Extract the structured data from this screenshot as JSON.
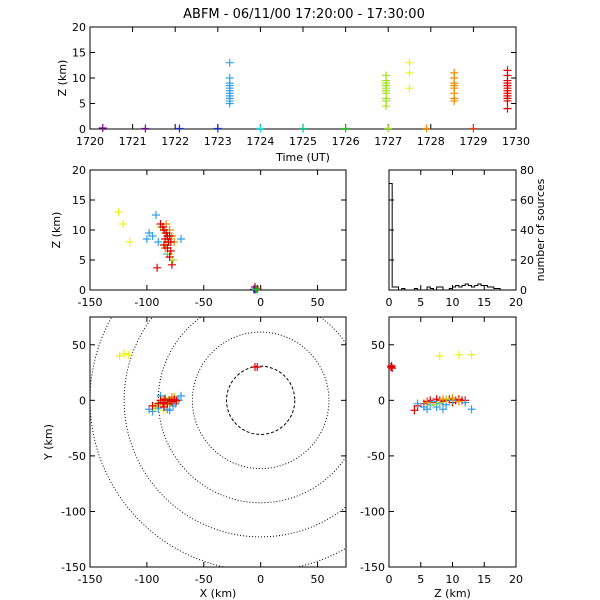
{
  "title": "ABFM - 06/11/00 17:20:00 - 17:30:00",
  "colors": {
    "purple": "#7a00a0",
    "indigo": "#2a10b8",
    "blue": "#1030d0",
    "skyblue": "#30a0e8",
    "cyan": "#00e8e0",
    "teal": "#00c890",
    "green": "#10d010",
    "lime": "#a0e020",
    "yellow": "#f0f020",
    "orange": "#f08c00",
    "orangered": "#f04000",
    "red": "#e00000"
  },
  "chart_data": [
    {
      "id": "time-height",
      "type": "scatter",
      "xlabel": "Time (UT)",
      "ylabel": "Z (km)",
      "xlim": [
        1720,
        1730
      ],
      "ylim": [
        0,
        20
      ],
      "x_ticks": [
        "1720",
        "1721",
        "1722",
        "1723",
        "1724",
        "1725",
        "1726",
        "1727",
        "1728",
        "1729",
        "1730"
      ],
      "y_ticks": [
        "0",
        "5",
        "10",
        "15",
        "20"
      ],
      "series": [
        {
          "color": "purple",
          "points": [
            [
              1720.3,
              0.2
            ],
            [
              1721.3,
              0.1
            ]
          ]
        },
        {
          "color": "blue",
          "points": [
            [
              1722.1,
              0.1
            ],
            [
              1723.0,
              0.1
            ]
          ]
        },
        {
          "color": "skyblue",
          "points": [
            [
              1723.28,
              13
            ],
            [
              1723.28,
              10
            ],
            [
              1723.28,
              9
            ],
            [
              1723.28,
              8.5
            ],
            [
              1723.28,
              8
            ],
            [
              1723.28,
              7.5
            ],
            [
              1723.28,
              7
            ],
            [
              1723.28,
              6.5
            ],
            [
              1723.28,
              6
            ],
            [
              1723.28,
              5.5
            ],
            [
              1723.28,
              5
            ]
          ]
        },
        {
          "color": "cyan",
          "points": [
            [
              1724.0,
              0.1
            ]
          ]
        },
        {
          "color": "teal",
          "points": [
            [
              1725.0,
              0.1
            ]
          ]
        },
        {
          "color": "green",
          "points": [
            [
              1726.0,
              0.1
            ]
          ]
        },
        {
          "color": "lime",
          "points": [
            [
              1726.95,
              10.5
            ],
            [
              1726.95,
              9.5
            ],
            [
              1726.95,
              9
            ],
            [
              1726.95,
              8.5
            ],
            [
              1726.95,
              8
            ],
            [
              1726.95,
              7.5
            ],
            [
              1726.95,
              7
            ],
            [
              1726.95,
              6
            ],
            [
              1726.95,
              5.5
            ],
            [
              1726.95,
              4.5
            ],
            [
              1727.0,
              0.1
            ]
          ]
        },
        {
          "color": "yellow",
          "points": [
            [
              1727.5,
              13
            ],
            [
              1727.5,
              11
            ],
            [
              1727.5,
              8
            ]
          ]
        },
        {
          "color": "orange",
          "points": [
            [
              1727.9,
              0.1
            ],
            [
              1728.55,
              11
            ],
            [
              1728.55,
              10
            ],
            [
              1728.55,
              9
            ],
            [
              1728.55,
              8.5
            ],
            [
              1728.55,
              8
            ],
            [
              1728.55,
              7
            ],
            [
              1728.55,
              6
            ],
            [
              1728.55,
              5.5
            ]
          ]
        },
        {
          "color": "orangered",
          "points": [
            [
              1729.0,
              0.1
            ]
          ]
        },
        {
          "color": "red",
          "points": [
            [
              1729.8,
              11.5
            ],
            [
              1729.8,
              10.5
            ],
            [
              1729.8,
              9.5
            ],
            [
              1729.8,
              9
            ],
            [
              1729.8,
              8.5
            ],
            [
              1729.8,
              8
            ],
            [
              1729.8,
              7.5
            ],
            [
              1729.8,
              7
            ],
            [
              1729.8,
              6.5
            ],
            [
              1729.8,
              6
            ],
            [
              1729.8,
              5.5
            ],
            [
              1729.8,
              4
            ]
          ]
        }
      ]
    },
    {
      "id": "x-z",
      "type": "scatter",
      "xlabel": "",
      "ylabel": "Z (km)",
      "xlim": [
        -150,
        75
      ],
      "ylim": [
        0,
        20
      ],
      "x_ticks": [
        "-150",
        "-100",
        "-50",
        "0",
        "50"
      ],
      "y_ticks": [
        "0",
        "5",
        "10",
        "15",
        "20"
      ],
      "series": [
        {
          "color": "yellow",
          "points": [
            [
              -125,
              13
            ],
            [
              -121,
              11
            ],
            [
              -115,
              8
            ]
          ]
        },
        {
          "color": "skyblue",
          "points": [
            [
              -92,
              12.5
            ],
            [
              -98,
              9.5
            ],
            [
              -100,
              8.5
            ],
            [
              -95,
              9
            ],
            [
              -85,
              10
            ],
            [
              -80,
              9
            ],
            [
              -70,
              8.5
            ],
            [
              -90,
              8
            ],
            [
              -84,
              7
            ],
            [
              -82,
              6
            ]
          ]
        },
        {
          "color": "lime",
          "points": [
            [
              -88,
              10.5
            ],
            [
              -84,
              9.5
            ],
            [
              -78,
              9
            ],
            [
              -83,
              7.5
            ],
            [
              -80,
              6
            ],
            [
              -77,
              5
            ]
          ]
        },
        {
          "color": "orange",
          "points": [
            [
              -83,
              11
            ],
            [
              -80,
              10
            ],
            [
              -78,
              9
            ],
            [
              -82,
              8.5
            ],
            [
              -76,
              8
            ],
            [
              -84,
              7
            ]
          ]
        },
        {
          "color": "red",
          "points": [
            [
              -88,
              11
            ],
            [
              -86,
              10.5
            ],
            [
              -85,
              10
            ],
            [
              -83,
              9.5
            ],
            [
              -82,
              9
            ],
            [
              -80,
              9
            ],
            [
              -84,
              8.5
            ],
            [
              -81,
              8
            ],
            [
              -79,
              8
            ],
            [
              -85,
              7.5
            ],
            [
              -82,
              7
            ],
            [
              -79,
              6.5
            ],
            [
              -80,
              5.5
            ],
            [
              -78,
              4.2
            ],
            [
              -91,
              3.7
            ],
            [
              -5,
              0.5
            ],
            [
              -3,
              0.2
            ]
          ]
        },
        {
          "color": "purple",
          "points": [
            [
              -6,
              0.1
            ]
          ]
        },
        {
          "color": "blue",
          "points": [
            [
              -5,
              0.1
            ]
          ]
        },
        {
          "color": "green",
          "points": [
            [
              -4,
              0.1
            ]
          ]
        }
      ]
    },
    {
      "id": "source-histogram",
      "type": "bar",
      "xlabel": "",
      "ylabel": "number of sources",
      "xlim": [
        0,
        20
      ],
      "ylim": [
        0,
        80
      ],
      "x_ticks": [
        "0",
        "5",
        "10",
        "15",
        "20"
      ],
      "y_ticks": [
        "0",
        "20",
        "40",
        "60",
        "80"
      ],
      "bin_width": 0.5,
      "bin_start": 0,
      "values": [
        71,
        2,
        2,
        0,
        1,
        0,
        0,
        0,
        1,
        0,
        0,
        0,
        2,
        1,
        0,
        2,
        2,
        0,
        0,
        1,
        2,
        3,
        2,
        3,
        4,
        3,
        2,
        3,
        4,
        3,
        3,
        2,
        2,
        1,
        1,
        0,
        0,
        0,
        0,
        0
      ]
    },
    {
      "id": "plan-view",
      "type": "scatter",
      "xlabel": "X (km)",
      "ylabel": "Y (km)",
      "xlim": [
        -150,
        75
      ],
      "ylim": [
        -150,
        75
      ],
      "x_ticks": [
        "-150",
        "-100",
        "-50",
        "0",
        "50"
      ],
      "y_ticks": [
        "-150",
        "-100",
        "-50",
        "0",
        "50"
      ],
      "range_rings_km": [
        30,
        60,
        90,
        120,
        150
      ],
      "series": [
        {
          "color": "yellow",
          "points": [
            [
              -120,
              42
            ],
            [
              -116,
              41
            ],
            [
              -124,
              40
            ],
            [
              -93,
              -7
            ],
            [
              -85,
              -9
            ]
          ]
        },
        {
          "color": "skyblue",
          "points": [
            [
              -98,
              -8
            ],
            [
              -95,
              -10
            ],
            [
              -90,
              -7
            ],
            [
              -85,
              -3
            ],
            [
              -82,
              -8
            ],
            [
              -80,
              -9
            ],
            [
              -77,
              -5
            ],
            [
              -75,
              -3
            ],
            [
              -70,
              4
            ],
            [
              -72,
              0
            ],
            [
              -88,
              4
            ]
          ]
        },
        {
          "color": "lime",
          "points": [
            [
              -92,
              -5
            ],
            [
              -88,
              -2
            ],
            [
              -84,
              2
            ],
            [
              -80,
              -1
            ],
            [
              -76,
              3
            ]
          ]
        },
        {
          "color": "orange",
          "points": [
            [
              -85,
              0
            ],
            [
              -82,
              -4
            ],
            [
              -79,
              -2
            ],
            [
              -74,
              -1
            ],
            [
              -78,
              3
            ]
          ]
        },
        {
          "color": "red",
          "points": [
            [
              -95,
              -5
            ],
            [
              -90,
              -3
            ],
            [
              -88,
              0
            ],
            [
              -86,
              -2
            ],
            [
              -84,
              1
            ],
            [
              -82,
              -3
            ],
            [
              -80,
              0
            ],
            [
              -78,
              -1
            ],
            [
              -76,
              1
            ],
            [
              -74,
              0
            ],
            [
              -85,
              -6
            ],
            [
              -5,
              30
            ],
            [
              -3,
              30
            ]
          ]
        }
      ]
    },
    {
      "id": "z-y",
      "type": "scatter",
      "xlabel": "Z (km)",
      "ylabel": "",
      "xlim": [
        0,
        20
      ],
      "ylim": [
        -150,
        75
      ],
      "x_ticks": [
        "0",
        "5",
        "10",
        "15",
        "20"
      ],
      "y_ticks": [
        "-150",
        "-100",
        "-50",
        "0",
        "50"
      ],
      "series": [
        {
          "color": "red",
          "points": [
            [
              0.4,
              31
            ],
            [
              0.5,
              29
            ],
            [
              0.3,
              30
            ],
            [
              4,
              -9
            ],
            [
              4.5,
              -5
            ],
            [
              5.5,
              -3
            ],
            [
              6,
              -1
            ],
            [
              6.5,
              0
            ],
            [
              7,
              -2
            ],
            [
              7.5,
              1
            ],
            [
              8,
              0
            ],
            [
              8.5,
              -1
            ],
            [
              9,
              0
            ],
            [
              9.5,
              1
            ],
            [
              10,
              -2
            ],
            [
              10.5,
              0
            ],
            [
              11,
              1
            ],
            [
              11.5,
              0
            ],
            [
              12,
              0
            ]
          ]
        },
        {
          "color": "yellow",
          "points": [
            [
              8,
              40
            ],
            [
              11,
              41
            ],
            [
              13,
              41
            ]
          ]
        },
        {
          "color": "skyblue",
          "points": [
            [
              4.5,
              -3
            ],
            [
              5.5,
              -6
            ],
            [
              6,
              -8
            ],
            [
              6.5,
              -4
            ],
            [
              7,
              -1
            ],
            [
              7.5,
              -6
            ],
            [
              8,
              -3
            ],
            [
              8.5,
              -8
            ],
            [
              9,
              -4
            ],
            [
              10,
              0
            ],
            [
              13,
              -8
            ],
            [
              12,
              -2
            ]
          ]
        },
        {
          "color": "lime",
          "points": [
            [
              7,
              -4
            ],
            [
              8,
              -2
            ],
            [
              9,
              1
            ]
          ]
        },
        {
          "color": "orange",
          "points": [
            [
              6,
              -2
            ],
            [
              8.5,
              1
            ],
            [
              10,
              2
            ],
            [
              11,
              -1
            ]
          ]
        }
      ]
    }
  ]
}
